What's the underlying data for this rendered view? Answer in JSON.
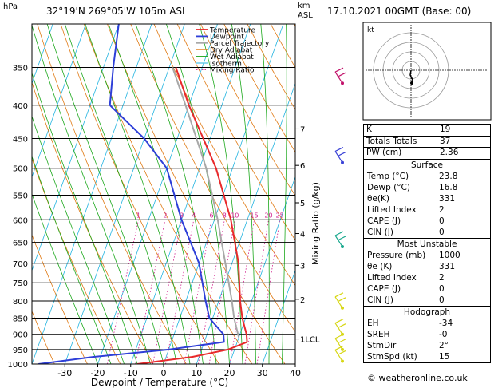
{
  "header": {
    "hpa_label": "hPa",
    "location": "32°19'N  269°05'W  105m  ASL",
    "km_label": "km",
    "asl_label": "ASL",
    "datetime": "17.10.2021  00GMT  (Base: 00)"
  },
  "chart_data": {
    "type": "skew-t log-p sounding",
    "xlabel": "Dewpoint / Temperature (°C)",
    "y_left_title": "hPa",
    "y_right_title": "km ASL",
    "mixing_ratio_axis_label": "Mixing Ratio (g/kg)",
    "xlim": [
      -40,
      40
    ],
    "ylim_hpa": [
      1000,
      300
    ],
    "x_ticks": [
      -30,
      -20,
      -10,
      0,
      10,
      20,
      30,
      40
    ],
    "x_tick_labels": [
      "-30",
      "-20",
      "-10",
      "0",
      "10",
      "20",
      "30",
      "40"
    ],
    "pressure_levels": [
      350,
      400,
      450,
      500,
      550,
      600,
      650,
      700,
      750,
      800,
      850,
      900,
      950,
      1000
    ],
    "km_ticks": [
      {
        "km": "1LCL",
        "p": 915
      },
      {
        "km": "2",
        "p": 795
      },
      {
        "km": "3",
        "p": 705
      },
      {
        "km": "4",
        "p": 630
      },
      {
        "km": "5",
        "p": 565
      },
      {
        "km": "6",
        "p": 495
      },
      {
        "km": "7",
        "p": 435
      }
    ],
    "mixing_ratio_labels": [
      "1",
      "2",
      "3",
      "4",
      "6",
      "8",
      "10",
      "15",
      "20",
      "25"
    ],
    "mixing_ratio_values": [
      1,
      2,
      3,
      4,
      6,
      8,
      10,
      15,
      20,
      25
    ],
    "legend": [
      "Temperature",
      "Dewpoint",
      "Parcel Trajectory",
      "Dry Adiabat",
      "Wet Adiabat",
      "Isotherm",
      "Mixing Ratio"
    ],
    "colors": {
      "temperature": "#e8292b",
      "dewpoint": "#2e3fd8",
      "parcel": "#a8a8a8",
      "dry_adiabat": "#e07a14",
      "wet_adiabat": "#1ca81c",
      "isotherm": "#21b3e0",
      "mixing_ratio": "#d11c8c",
      "wind_barb_upper": "#c2126b",
      "wind_barb_mid": "#3a42d6",
      "wind_barb_low": "#19a88d",
      "wind_barb_sfc": "#d7d715"
    },
    "temperature_profile": [
      {
        "p": 1000,
        "t": -8
      },
      {
        "p": 975,
        "t": 8
      },
      {
        "p": 950,
        "t": 18
      },
      {
        "p": 925,
        "t": 23
      },
      {
        "p": 900,
        "t": 22
      },
      {
        "p": 850,
        "t": 19
      },
      {
        "p": 800,
        "t": 16.5
      },
      {
        "p": 700,
        "t": 12
      },
      {
        "p": 600,
        "t": 5
      },
      {
        "p": 500,
        "t": -5
      },
      {
        "p": 400,
        "t": -20
      },
      {
        "p": 350,
        "t": -28
      }
    ],
    "dewpoint_profile": [
      {
        "p": 1000,
        "t": -38
      },
      {
        "p": 975,
        "t": -22
      },
      {
        "p": 950,
        "t": 0
      },
      {
        "p": 925,
        "t": 16
      },
      {
        "p": 900,
        "t": 15
      },
      {
        "p": 850,
        "t": 9
      },
      {
        "p": 800,
        "t": 6
      },
      {
        "p": 700,
        "t": 0
      },
      {
        "p": 600,
        "t": -10
      },
      {
        "p": 500,
        "t": -20
      },
      {
        "p": 450,
        "t": -30
      },
      {
        "p": 400,
        "t": -44
      },
      {
        "p": 350,
        "t": -47
      },
      {
        "p": 300,
        "t": -50
      }
    ],
    "parcel_profile": [
      {
        "p": 910,
        "t": 20
      },
      {
        "p": 850,
        "t": 16.5
      },
      {
        "p": 800,
        "t": 14
      },
      {
        "p": 700,
        "t": 8
      },
      {
        "p": 600,
        "t": 1
      },
      {
        "p": 500,
        "t": -8
      },
      {
        "p": 400,
        "t": -21
      },
      {
        "p": 350,
        "t": -29
      }
    ],
    "wind_barbs": [
      {
        "p": 370,
        "color_key": "wind_barb_upper"
      },
      {
        "p": 490,
        "color_key": "wind_barb_mid"
      },
      {
        "p": 660,
        "color_key": "wind_barb_low"
      },
      {
        "p": 820,
        "color_key": "wind_barb_sfc"
      },
      {
        "p": 900,
        "color_key": "wind_barb_sfc"
      },
      {
        "p": 950,
        "color_key": "wind_barb_sfc"
      },
      {
        "p": 990,
        "color_key": "wind_barb_sfc"
      }
    ]
  },
  "hodograph": {
    "label": "kt",
    "rings": [
      10,
      20,
      30,
      40
    ]
  },
  "indices": [
    {
      "label": "K",
      "value": "19"
    },
    {
      "label": "Totals Totals",
      "value": "37"
    },
    {
      "label": "PW (cm)",
      "value": "2.36"
    }
  ],
  "surface": {
    "title": "Surface",
    "rows": [
      {
        "label": "Temp (°C)",
        "value": "23.8"
      },
      {
        "label": "Dewp (°C)",
        "value": "16.8"
      },
      {
        "label": "θe(K)",
        "value": "331"
      },
      {
        "label": "Lifted Index",
        "value": "2"
      },
      {
        "label": "CAPE (J)",
        "value": "0"
      },
      {
        "label": "CIN (J)",
        "value": "0"
      }
    ]
  },
  "most_unstable": {
    "title": "Most Unstable",
    "rows": [
      {
        "label": "Pressure (mb)",
        "value": "1000"
      },
      {
        "label": "θe (K)",
        "value": "331"
      },
      {
        "label": "Lifted Index",
        "value": "2"
      },
      {
        "label": "CAPE (J)",
        "value": "0"
      },
      {
        "label": "CIN (J)",
        "value": "0"
      }
    ]
  },
  "hodograph_table": {
    "title": "Hodograph",
    "rows": [
      {
        "label": "EH",
        "value": "-34"
      },
      {
        "label": "SREH",
        "value": "-0"
      },
      {
        "label": "StmDir",
        "value": "2°"
      },
      {
        "label": "StmSpd (kt)",
        "value": "15"
      }
    ]
  },
  "copyright": "© weatheronline.co.uk"
}
